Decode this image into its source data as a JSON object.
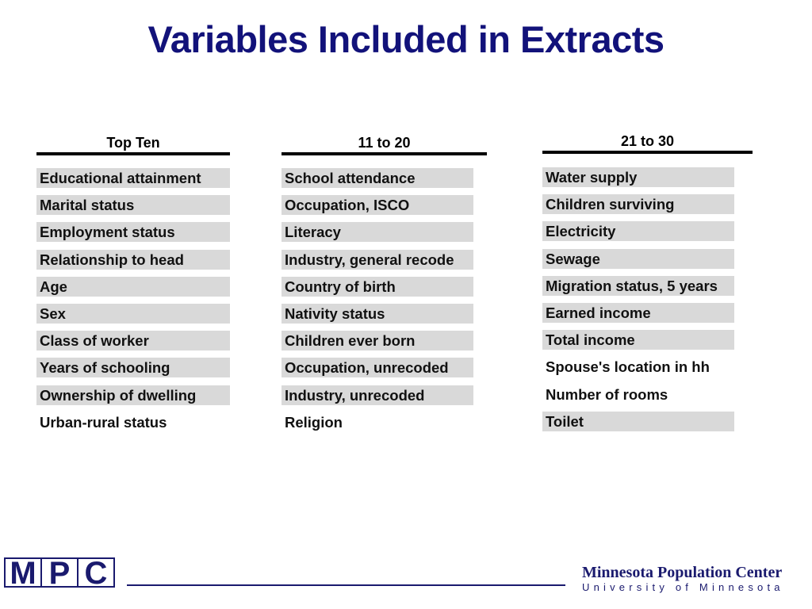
{
  "title": "Variables Included in Extracts",
  "columns": [
    {
      "header": "Top Ten",
      "items": [
        {
          "label": "Educational attainment",
          "shaded": true
        },
        {
          "label": "Marital status",
          "shaded": true
        },
        {
          "label": "Employment status",
          "shaded": true
        },
        {
          "label": "Relationship to head",
          "shaded": true
        },
        {
          "label": "Age",
          "shaded": true
        },
        {
          "label": "Sex",
          "shaded": true
        },
        {
          "label": "Class of worker",
          "shaded": true
        },
        {
          "label": "Years of schooling",
          "shaded": true
        },
        {
          "label": "Ownership of dwelling",
          "shaded": true
        },
        {
          "label": "Urban-rural status",
          "shaded": false
        }
      ]
    },
    {
      "header": "11 to 20",
      "items": [
        {
          "label": "School attendance",
          "shaded": true
        },
        {
          "label": "Occupation, ISCO",
          "shaded": true
        },
        {
          "label": "Literacy",
          "shaded": true
        },
        {
          "label": "Industry, general recode",
          "shaded": true
        },
        {
          "label": "Country of birth",
          "shaded": true
        },
        {
          "label": "Nativity status",
          "shaded": true
        },
        {
          "label": "Children ever born",
          "shaded": true
        },
        {
          "label": "Occupation, unrecoded",
          "shaded": true
        },
        {
          "label": "Industry, unrecoded",
          "shaded": true
        },
        {
          "label": "Religion",
          "shaded": false
        }
      ]
    },
    {
      "header": "21 to 30",
      "items": [
        {
          "label": "Water supply",
          "shaded": true
        },
        {
          "label": "Children surviving",
          "shaded": true
        },
        {
          "label": "Electricity",
          "shaded": true
        },
        {
          "label": "Sewage",
          "shaded": true
        },
        {
          "label": "Migration status, 5 years",
          "shaded": true
        },
        {
          "label": "Earned income",
          "shaded": true
        },
        {
          "label": "Total income",
          "shaded": true
        },
        {
          "label": "Spouse's location in hh",
          "shaded": false
        },
        {
          "label": "Number of rooms",
          "shaded": false
        },
        {
          "label": "Toilet",
          "shaded": true
        }
      ]
    }
  ],
  "footer": {
    "logo_letters": [
      "M",
      "P",
      "C"
    ],
    "org_name": "Minnesota Population Center",
    "org_sub": "University of Minnesota"
  }
}
